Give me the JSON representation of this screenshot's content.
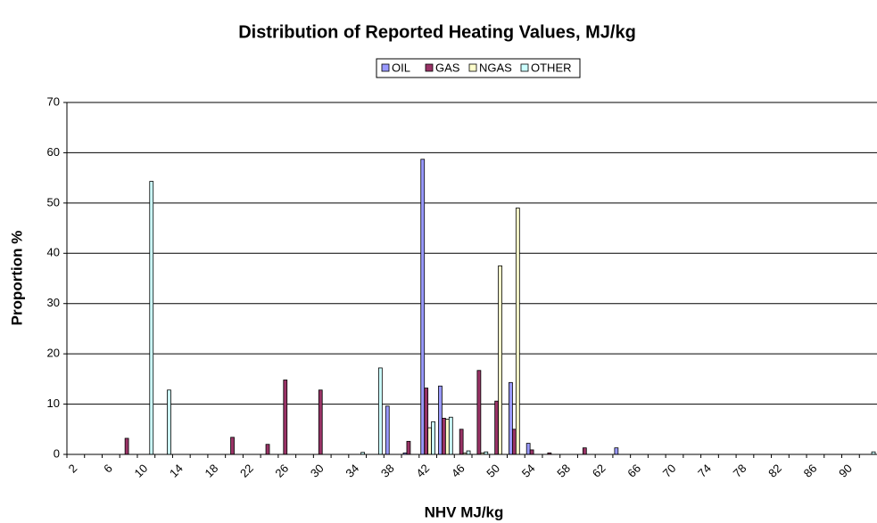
{
  "chart_data": {
    "type": "bar",
    "title": "Distribution of Reported Heating Values, MJ/kg",
    "x_label": "NHV  MJ/kg",
    "y_label": "Proportion %",
    "categories": [
      "2",
      null,
      "6",
      null,
      "10",
      null,
      "14",
      null,
      "18",
      null,
      "22",
      null,
      "26",
      null,
      "30",
      null,
      "34",
      null,
      "38",
      null,
      "42",
      null,
      "46",
      null,
      "50",
      null,
      "54",
      null,
      "58",
      null,
      "62",
      null,
      "66",
      null,
      "70",
      null,
      "74",
      null,
      "78",
      null,
      "82",
      null,
      "86",
      null,
      "90",
      null
    ],
    "series": [
      {
        "name": "OIL",
        "color": "#9999ff",
        "values": [
          0,
          0,
          0,
          0,
          0,
          0,
          0,
          0,
          0,
          0,
          0,
          0,
          0,
          0,
          0,
          0,
          0,
          0,
          9.6,
          0.3,
          58.7,
          13.6,
          0,
          0,
          0,
          14.3,
          2.2,
          0,
          0,
          0,
          0,
          1.3,
          0,
          0,
          0,
          0,
          0,
          0,
          0,
          0,
          0,
          0,
          0,
          0,
          0,
          0
        ]
      },
      {
        "name": "GAS",
        "color": "#993366",
        "values": [
          0,
          0,
          0,
          3.2,
          0,
          0,
          0,
          0,
          0,
          3.4,
          0,
          2,
          14.8,
          0,
          12.8,
          0,
          0,
          0,
          0,
          2.6,
          13.2,
          7.2,
          5,
          16.7,
          10.6,
          5,
          0.9,
          0.3,
          0,
          1.3,
          0,
          0,
          0,
          0,
          0,
          0,
          0,
          0,
          0,
          0,
          0,
          0,
          0,
          0,
          0,
          0
        ]
      },
      {
        "name": "NGAS",
        "color": "#ffffcc",
        "values": [
          0,
          0,
          0,
          0,
          0,
          0,
          0,
          0,
          0,
          0,
          0,
          0,
          0,
          0,
          0,
          0,
          0,
          0,
          0,
          0,
          5.3,
          7,
          0.3,
          0.3,
          37.5,
          49,
          0,
          0,
          0,
          0,
          0,
          0,
          0,
          0,
          0,
          0,
          0,
          0,
          0,
          0,
          0,
          0,
          0,
          0,
          0,
          0
        ]
      },
      {
        "name": "OTHER",
        "color": "#ccffff",
        "values": [
          0,
          0,
          0,
          0,
          54.3,
          12.8,
          0,
          0,
          0,
          0,
          0,
          0,
          0,
          0,
          0,
          0,
          0.4,
          17.2,
          0,
          0,
          6.5,
          7.4,
          0.7,
          0.5,
          0,
          0,
          0,
          0,
          0,
          0,
          0,
          0,
          0,
          0,
          0,
          0,
          0,
          0,
          0,
          0,
          0,
          0,
          0,
          0,
          0,
          0.5
        ]
      }
    ],
    "ylim": [
      0,
      70
    ],
    "yticks": [
      0,
      10,
      20,
      30,
      40,
      50,
      60,
      70
    ],
    "grid": true,
    "legend": "top"
  }
}
